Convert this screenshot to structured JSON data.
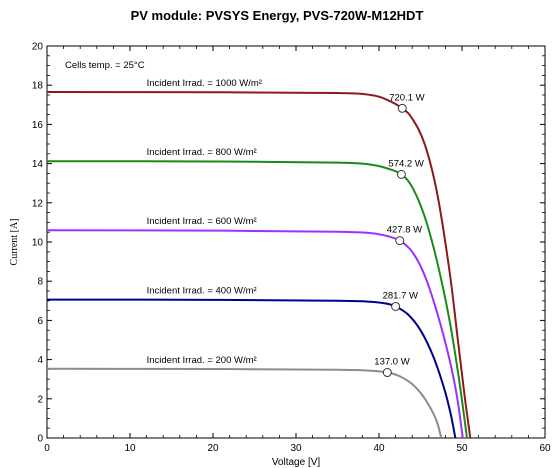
{
  "chart_data": {
    "type": "line",
    "title": "PV module:  PVSYS Energy,  PVS-720W-M12HDT",
    "xlabel": "Voltage [V]",
    "ylabel": "Current [A]",
    "xlim": [
      0,
      60
    ],
    "ylim": [
      0,
      20
    ],
    "xticks": [
      0,
      10,
      20,
      30,
      40,
      50,
      60
    ],
    "yticks": [
      0,
      2,
      4,
      6,
      8,
      10,
      12,
      14,
      16,
      18,
      20
    ],
    "grid": false,
    "annotation": "Cells temp. = 25°C",
    "series": [
      {
        "name": "Incident Irrad. = 1000 W/m²",
        "color": "#8b1a1a",
        "isc": 17.65,
        "voc": 51.0,
        "mpp": {
          "v": 42.8,
          "i": 16.82,
          "label": "720.1 W"
        },
        "points": [
          [
            0,
            17.65
          ],
          [
            20,
            17.64
          ],
          [
            35,
            17.6
          ],
          [
            39,
            17.5
          ],
          [
            41,
            17.25
          ],
          [
            42.8,
            16.82
          ],
          [
            44,
            16.3
          ],
          [
            45.5,
            15.0
          ],
          [
            47,
            12.5
          ],
          [
            48.5,
            8.5
          ],
          [
            49.5,
            5.0
          ],
          [
            50.3,
            2.2
          ],
          [
            51,
            0
          ]
        ]
      },
      {
        "name": "Incident Irrad. = 800 W/m²",
        "color": "#1a8a1a",
        "isc": 14.12,
        "voc": 50.6,
        "mpp": {
          "v": 42.7,
          "i": 13.45,
          "label": "574.2 W"
        },
        "points": [
          [
            0,
            14.12
          ],
          [
            20,
            14.11
          ],
          [
            35,
            14.05
          ],
          [
            39,
            13.95
          ],
          [
            41,
            13.75
          ],
          [
            42.7,
            13.45
          ],
          [
            44,
            12.8
          ],
          [
            45.5,
            11.3
          ],
          [
            47,
            9.0
          ],
          [
            48.5,
            6.0
          ],
          [
            49.5,
            3.4
          ],
          [
            50.1,
            1.6
          ],
          [
            50.6,
            0
          ]
        ]
      },
      {
        "name": "Incident Irrad. = 600 W/m²",
        "color": "#9b30ff",
        "isc": 10.6,
        "voc": 50.1,
        "mpp": {
          "v": 42.5,
          "i": 10.07,
          "label": "427.8 W"
        },
        "points": [
          [
            0,
            10.6
          ],
          [
            20,
            10.58
          ],
          [
            35,
            10.52
          ],
          [
            39,
            10.45
          ],
          [
            41,
            10.3
          ],
          [
            42.5,
            10.07
          ],
          [
            44,
            9.5
          ],
          [
            45.5,
            8.3
          ],
          [
            47,
            6.4
          ],
          [
            48.5,
            4.0
          ],
          [
            49.4,
            2.1
          ],
          [
            50.1,
            0
          ]
        ]
      },
      {
        "name": "Incident Irrad. = 400 W/m²",
        "color": "#00008b",
        "isc": 7.06,
        "voc": 49.2,
        "mpp": {
          "v": 42.0,
          "i": 6.71,
          "label": "281.7 W"
        },
        "points": [
          [
            0,
            7.06
          ],
          [
            20,
            7.05
          ],
          [
            35,
            7.0
          ],
          [
            39,
            6.95
          ],
          [
            41,
            6.85
          ],
          [
            42.0,
            6.71
          ],
          [
            43.5,
            6.3
          ],
          [
            45,
            5.5
          ],
          [
            46.5,
            4.2
          ],
          [
            47.8,
            2.6
          ],
          [
            48.6,
            1.3
          ],
          [
            49.2,
            0
          ]
        ]
      },
      {
        "name": "Incident Irrad. = 200 W/m²",
        "color": "#8c8c8c",
        "isc": 3.53,
        "voc": 47.5,
        "mpp": {
          "v": 41.0,
          "i": 3.34,
          "label": "137.0 W"
        },
        "points": [
          [
            0,
            3.53
          ],
          [
            20,
            3.52
          ],
          [
            35,
            3.48
          ],
          [
            39,
            3.43
          ],
          [
            41.0,
            3.34
          ],
          [
            42.5,
            3.15
          ],
          [
            44,
            2.75
          ],
          [
            45.2,
            2.2
          ],
          [
            46.3,
            1.45
          ],
          [
            47,
            0.8
          ],
          [
            47.5,
            0
          ]
        ]
      }
    ]
  }
}
